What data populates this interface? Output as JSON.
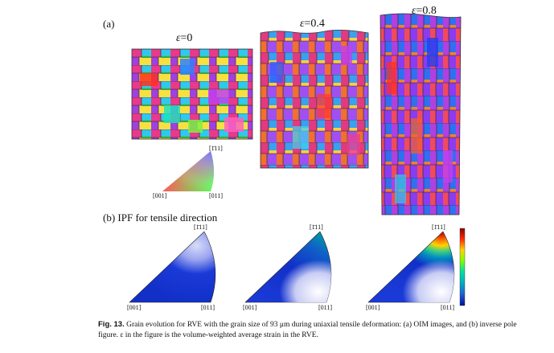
{
  "panel_a": {
    "label": "(a)",
    "strain_symbol": "ε",
    "strains": [
      "=0",
      "=0.4",
      "=0.8"
    ]
  },
  "legend_triangle": {
    "tick_top": "[1̄11]",
    "tick_left": "[001]",
    "tick_right": "[011]"
  },
  "panel_b": {
    "label": "(b)  IPF for tensile direction",
    "tick_top": "[1̄11]",
    "tick_left": "[001]",
    "tick_right": "[011]"
  },
  "colorbar": {
    "colors": [
      "#8b0000",
      "#ff2a00",
      "#ffd400",
      "#7fff00",
      "#00e0a0",
      "#00b0c0",
      "#2060d0",
      "#0010a0"
    ]
  },
  "caption": {
    "fig_label": "Fig. 13.",
    "text": " Grain evolution for RVE with the grain size of 93 μm during uniaxial tensile deformation: (a) OIM images, and (b) inverse pole figure. ε in the figure is the volume-weighted average strain in the RVE."
  }
}
